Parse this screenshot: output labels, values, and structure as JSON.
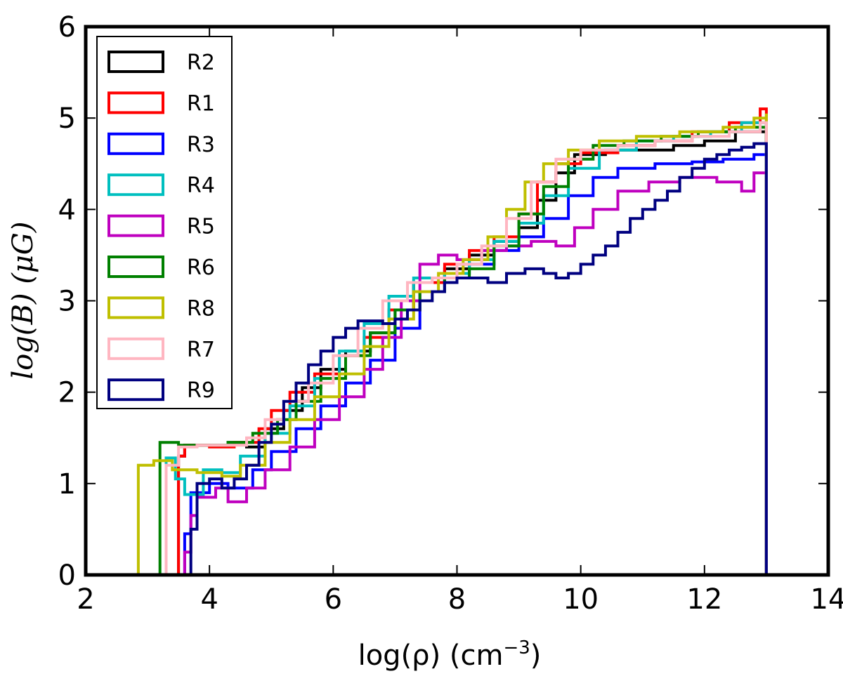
{
  "chart_data": {
    "type": "line",
    "drawstyle": "steps",
    "title": "",
    "xlabel": {
      "prefix": "log(ρ) (cm",
      "sup": "−3",
      "suffix": ")"
    },
    "ylabel": "log(B) (μG)",
    "xlim": [
      2,
      14
    ],
    "ylim": [
      0,
      6
    ],
    "xticks": [
      2,
      4,
      6,
      8,
      10,
      12,
      14
    ],
    "yticks": [
      0,
      1,
      2,
      3,
      4,
      5,
      6
    ],
    "xtick_labels": [
      "2",
      "4",
      "6",
      "8",
      "10",
      "12",
      "14"
    ],
    "ytick_labels": [
      "0",
      "1",
      "2",
      "3",
      "4",
      "5",
      "6"
    ],
    "grid": false,
    "legend_position": "top-left",
    "series": [
      {
        "name": "R2",
        "color": "#000000",
        "points": [
          [
            3.5,
            0.0
          ],
          [
            3.5,
            1.3
          ],
          [
            3.6,
            1.42
          ],
          [
            4.0,
            1.42
          ],
          [
            4.3,
            1.45
          ],
          [
            4.6,
            1.4
          ],
          [
            4.9,
            1.6
          ],
          [
            5.2,
            1.8
          ],
          [
            5.5,
            2.05
          ],
          [
            5.8,
            2.25
          ],
          [
            6.2,
            2.45
          ],
          [
            6.6,
            2.65
          ],
          [
            7.0,
            2.9
          ],
          [
            7.3,
            3.2
          ],
          [
            7.8,
            3.35
          ],
          [
            8.2,
            3.5
          ],
          [
            8.6,
            3.65
          ],
          [
            9.0,
            3.8
          ],
          [
            9.3,
            4.1
          ],
          [
            9.6,
            4.4
          ],
          [
            9.9,
            4.6
          ],
          [
            10.4,
            4.65
          ],
          [
            11.0,
            4.65
          ],
          [
            11.5,
            4.7
          ],
          [
            12.0,
            4.75
          ],
          [
            12.5,
            4.85
          ],
          [
            13.0,
            4.9
          ],
          [
            13.0,
            0.0
          ]
        ]
      },
      {
        "name": "R1",
        "color": "#ff0000",
        "points": [
          [
            3.5,
            0.0
          ],
          [
            3.5,
            1.3
          ],
          [
            3.6,
            1.42
          ],
          [
            4.0,
            1.4
          ],
          [
            4.4,
            1.45
          ],
          [
            4.8,
            1.6
          ],
          [
            5.0,
            1.8
          ],
          [
            5.3,
            2.0
          ],
          [
            5.7,
            2.2
          ],
          [
            6.1,
            2.4
          ],
          [
            6.5,
            2.6
          ],
          [
            6.9,
            2.9
          ],
          [
            7.3,
            3.2
          ],
          [
            7.8,
            3.4
          ],
          [
            8.2,
            3.55
          ],
          [
            8.6,
            3.7
          ],
          [
            9.0,
            3.95
          ],
          [
            9.3,
            4.3
          ],
          [
            9.6,
            4.5
          ],
          [
            10.0,
            4.62
          ],
          [
            10.6,
            4.7
          ],
          [
            11.2,
            4.75
          ],
          [
            11.8,
            4.85
          ],
          [
            12.4,
            4.95
          ],
          [
            12.9,
            5.1
          ],
          [
            13.0,
            5.1
          ],
          [
            13.0,
            0.0
          ]
        ]
      },
      {
        "name": "R3",
        "color": "#0000ff",
        "points": [
          [
            3.6,
            0.0
          ],
          [
            3.6,
            0.45
          ],
          [
            3.7,
            0.9
          ],
          [
            4.0,
            1.0
          ],
          [
            4.3,
            0.95
          ],
          [
            4.7,
            1.15
          ],
          [
            5.0,
            1.35
          ],
          [
            5.4,
            1.6
          ],
          [
            5.8,
            1.85
          ],
          [
            6.2,
            2.1
          ],
          [
            6.6,
            2.35
          ],
          [
            7.0,
            2.7
          ],
          [
            7.4,
            3.1
          ],
          [
            7.8,
            3.3
          ],
          [
            8.2,
            3.4
          ],
          [
            8.6,
            3.55
          ],
          [
            9.0,
            3.7
          ],
          [
            9.4,
            3.9
          ],
          [
            9.8,
            4.15
          ],
          [
            10.2,
            4.35
          ],
          [
            10.6,
            4.45
          ],
          [
            11.2,
            4.5
          ],
          [
            11.8,
            4.52
          ],
          [
            12.3,
            4.55
          ],
          [
            12.8,
            4.6
          ],
          [
            13.0,
            4.6
          ],
          [
            13.0,
            0.0
          ]
        ]
      },
      {
        "name": "R4",
        "color": "#00bfbf",
        "points": [
          [
            3.3,
            0.0
          ],
          [
            3.3,
            1.28
          ],
          [
            3.45,
            1.05
          ],
          [
            3.6,
            0.88
          ],
          [
            3.9,
            1.15
          ],
          [
            4.2,
            1.12
          ],
          [
            4.5,
            1.3
          ],
          [
            4.9,
            1.55
          ],
          [
            5.3,
            1.85
          ],
          [
            5.7,
            2.15
          ],
          [
            6.1,
            2.45
          ],
          [
            6.5,
            2.75
          ],
          [
            6.9,
            3.05
          ],
          [
            7.3,
            3.25
          ],
          [
            7.8,
            3.3
          ],
          [
            8.2,
            3.45
          ],
          [
            8.6,
            3.65
          ],
          [
            9.0,
            3.85
          ],
          [
            9.4,
            4.15
          ],
          [
            9.8,
            4.45
          ],
          [
            10.3,
            4.65
          ],
          [
            10.9,
            4.75
          ],
          [
            11.5,
            4.8
          ],
          [
            12.1,
            4.85
          ],
          [
            12.6,
            4.95
          ],
          [
            13.0,
            4.95
          ],
          [
            13.0,
            0.0
          ]
        ]
      },
      {
        "name": "R5",
        "color": "#bf00bf",
        "points": [
          [
            3.6,
            0.0
          ],
          [
            3.6,
            0.25
          ],
          [
            3.7,
            0.65
          ],
          [
            3.8,
            0.85
          ],
          [
            4.1,
            0.95
          ],
          [
            4.3,
            0.8
          ],
          [
            4.6,
            0.95
          ],
          [
            4.9,
            1.15
          ],
          [
            5.3,
            1.4
          ],
          [
            5.7,
            1.7
          ],
          [
            6.1,
            1.95
          ],
          [
            6.5,
            2.25
          ],
          [
            6.8,
            2.6
          ],
          [
            7.1,
            3.0
          ],
          [
            7.4,
            3.4
          ],
          [
            7.7,
            3.5
          ],
          [
            8.0,
            3.45
          ],
          [
            8.4,
            3.55
          ],
          [
            8.8,
            3.6
          ],
          [
            9.2,
            3.65
          ],
          [
            9.6,
            3.6
          ],
          [
            9.9,
            3.8
          ],
          [
            10.2,
            4.0
          ],
          [
            10.6,
            4.2
          ],
          [
            11.1,
            4.3
          ],
          [
            11.6,
            4.35
          ],
          [
            12.2,
            4.3
          ],
          [
            12.6,
            4.2
          ],
          [
            12.8,
            4.4
          ],
          [
            13.0,
            4.45
          ],
          [
            13.0,
            0.0
          ]
        ]
      },
      {
        "name": "R6",
        "color": "#008000",
        "points": [
          [
            3.2,
            0.0
          ],
          [
            3.2,
            1.45
          ],
          [
            3.5,
            1.42
          ],
          [
            3.9,
            1.42
          ],
          [
            4.3,
            1.45
          ],
          [
            4.7,
            1.55
          ],
          [
            5.1,
            1.7
          ],
          [
            5.4,
            1.9
          ],
          [
            5.8,
            2.15
          ],
          [
            6.2,
            2.4
          ],
          [
            6.6,
            2.65
          ],
          [
            7.0,
            2.9
          ],
          [
            7.4,
            3.1
          ],
          [
            7.8,
            3.25
          ],
          [
            8.2,
            3.35
          ],
          [
            8.6,
            3.6
          ],
          [
            9.0,
            3.95
          ],
          [
            9.4,
            4.25
          ],
          [
            9.8,
            4.55
          ],
          [
            10.2,
            4.7
          ],
          [
            10.7,
            4.75
          ],
          [
            11.3,
            4.8
          ],
          [
            11.9,
            4.85
          ],
          [
            12.5,
            4.9
          ],
          [
            13.0,
            4.9
          ],
          [
            13.0,
            0.0
          ]
        ]
      },
      {
        "name": "R8",
        "color": "#bfbf00",
        "points": [
          [
            2.85,
            0.0
          ],
          [
            2.85,
            1.2
          ],
          [
            3.1,
            1.25
          ],
          [
            3.4,
            1.15
          ],
          [
            3.8,
            1.12
          ],
          [
            4.2,
            1.08
          ],
          [
            4.5,
            1.2
          ],
          [
            4.9,
            1.45
          ],
          [
            5.3,
            1.7
          ],
          [
            5.7,
            1.95
          ],
          [
            6.1,
            2.2
          ],
          [
            6.5,
            2.5
          ],
          [
            6.9,
            2.8
          ],
          [
            7.3,
            3.1
          ],
          [
            7.7,
            3.3
          ],
          [
            8.1,
            3.45
          ],
          [
            8.5,
            3.7
          ],
          [
            8.8,
            4.0
          ],
          [
            9.1,
            4.3
          ],
          [
            9.4,
            4.5
          ],
          [
            9.8,
            4.65
          ],
          [
            10.3,
            4.75
          ],
          [
            10.9,
            4.8
          ],
          [
            11.6,
            4.85
          ],
          [
            12.3,
            4.9
          ],
          [
            12.8,
            5.0
          ],
          [
            13.0,
            5.05
          ],
          [
            13.0,
            0.0
          ]
        ]
      },
      {
        "name": "R7",
        "color": "#ffb6c1",
        "points": [
          [
            3.3,
            0.0
          ],
          [
            3.3,
            1.2
          ],
          [
            3.5,
            1.4
          ],
          [
            3.8,
            1.42
          ],
          [
            4.2,
            1.42
          ],
          [
            4.6,
            1.5
          ],
          [
            4.9,
            1.7
          ],
          [
            5.2,
            1.9
          ],
          [
            5.6,
            2.1
          ],
          [
            6.0,
            2.4
          ],
          [
            6.4,
            2.7
          ],
          [
            6.8,
            3.0
          ],
          [
            7.2,
            3.2
          ],
          [
            7.6,
            3.25
          ],
          [
            8.0,
            3.4
          ],
          [
            8.4,
            3.6
          ],
          [
            8.8,
            3.9
          ],
          [
            9.2,
            4.3
          ],
          [
            9.6,
            4.55
          ],
          [
            10.0,
            4.65
          ],
          [
            10.6,
            4.7
          ],
          [
            11.2,
            4.75
          ],
          [
            11.8,
            4.8
          ],
          [
            12.4,
            4.85
          ],
          [
            12.9,
            4.95
          ],
          [
            13.0,
            4.95
          ],
          [
            13.0,
            0.0
          ]
        ]
      },
      {
        "name": "R9",
        "color": "#000080",
        "points": [
          [
            3.7,
            0.0
          ],
          [
            3.7,
            0.5
          ],
          [
            3.8,
            1.0
          ],
          [
            4.0,
            1.05
          ],
          [
            4.2,
            0.95
          ],
          [
            4.4,
            1.05
          ],
          [
            4.6,
            1.2
          ],
          [
            4.8,
            1.45
          ],
          [
            5.0,
            1.65
          ],
          [
            5.2,
            1.9
          ],
          [
            5.4,
            2.1
          ],
          [
            5.6,
            2.3
          ],
          [
            5.8,
            2.45
          ],
          [
            6.0,
            2.6
          ],
          [
            6.2,
            2.7
          ],
          [
            6.4,
            2.78
          ],
          [
            6.6,
            2.78
          ],
          [
            6.8,
            2.75
          ],
          [
            7.0,
            2.8
          ],
          [
            7.2,
            2.9
          ],
          [
            7.4,
            3.0
          ],
          [
            7.6,
            3.1
          ],
          [
            7.8,
            3.2
          ],
          [
            8.0,
            3.25
          ],
          [
            8.2,
            3.25
          ],
          [
            8.5,
            3.2
          ],
          [
            8.8,
            3.3
          ],
          [
            9.1,
            3.35
          ],
          [
            9.4,
            3.3
          ],
          [
            9.6,
            3.25
          ],
          [
            9.8,
            3.3
          ],
          [
            10.0,
            3.4
          ],
          [
            10.2,
            3.5
          ],
          [
            10.4,
            3.6
          ],
          [
            10.6,
            3.75
          ],
          [
            10.8,
            3.9
          ],
          [
            11.0,
            4.0
          ],
          [
            11.2,
            4.1
          ],
          [
            11.4,
            4.2
          ],
          [
            11.6,
            4.35
          ],
          [
            11.8,
            4.45
          ],
          [
            12.0,
            4.55
          ],
          [
            12.2,
            4.6
          ],
          [
            12.4,
            4.65
          ],
          [
            12.6,
            4.68
          ],
          [
            12.8,
            4.72
          ],
          [
            13.0,
            4.7
          ],
          [
            13.0,
            0.0
          ]
        ]
      }
    ]
  }
}
